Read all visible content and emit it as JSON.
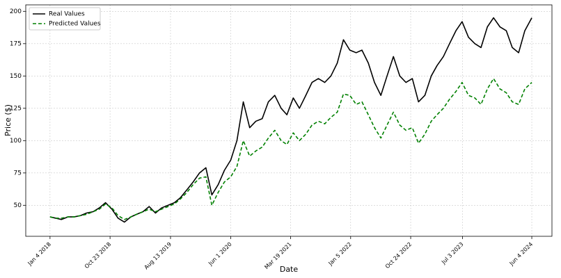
{
  "chart_data": {
    "type": "line",
    "xlabel": "Date",
    "ylabel": "Price ($)",
    "x": [
      "2018-01-04",
      "2018-02-01",
      "2018-03-01",
      "2018-04-01",
      "2018-05-01",
      "2018-06-01",
      "2018-07-01",
      "2018-08-01",
      "2018-09-01",
      "2018-10-01",
      "2018-11-01",
      "2018-12-01",
      "2019-01-01",
      "2019-02-01",
      "2019-03-01",
      "2019-04-01",
      "2019-05-01",
      "2019-06-01",
      "2019-07-01",
      "2019-08-01",
      "2019-09-01",
      "2019-10-01",
      "2019-11-01",
      "2019-12-01",
      "2020-01-01",
      "2020-02-01",
      "2020-03-01",
      "2020-04-01",
      "2020-05-01",
      "2020-06-01",
      "2020-07-01",
      "2020-08-01",
      "2020-09-01",
      "2020-10-01",
      "2020-11-01",
      "2020-12-01",
      "2021-01-01",
      "2021-02-01",
      "2021-03-01",
      "2021-04-01",
      "2021-05-01",
      "2021-06-01",
      "2021-07-01",
      "2021-08-01",
      "2021-09-01",
      "2021-10-01",
      "2021-11-01",
      "2021-12-01",
      "2022-01-01",
      "2022-02-01",
      "2022-03-01",
      "2022-04-01",
      "2022-05-01",
      "2022-06-01",
      "2022-07-01",
      "2022-08-01",
      "2022-09-01",
      "2022-10-01",
      "2022-11-01",
      "2022-12-01",
      "2023-01-01",
      "2023-02-01",
      "2023-03-01",
      "2023-04-01",
      "2023-05-01",
      "2023-06-01",
      "2023-07-01",
      "2023-08-01",
      "2023-09-01",
      "2023-10-01",
      "2023-11-01",
      "2023-12-01",
      "2024-01-01",
      "2024-02-01",
      "2024-03-01",
      "2024-04-01",
      "2024-05-01",
      "2024-06-04"
    ],
    "series": [
      {
        "name": "Real Values",
        "color": "#000000",
        "linestyle": "solid",
        "values": [
          41,
          40,
          39,
          41,
          41,
          42,
          44,
          45,
          48,
          52,
          47,
          40,
          37,
          41,
          43,
          45,
          49,
          44,
          48,
          50,
          52,
          56,
          62,
          68,
          75,
          79,
          58,
          66,
          77,
          85,
          100,
          130,
          110,
          115,
          117,
          130,
          135,
          125,
          120,
          133,
          125,
          135,
          145,
          148,
          145,
          150,
          160,
          178,
          170,
          168,
          170,
          160,
          145,
          135,
          150,
          165,
          150,
          145,
          148,
          130,
          135,
          150,
          158,
          165,
          175,
          185,
          192,
          180,
          175,
          172,
          188,
          195,
          188,
          185,
          172,
          168,
          185,
          195
        ]
      },
      {
        "name": "Predicted Values",
        "color": "#008000",
        "linestyle": "dashed",
        "values": [
          41,
          40,
          40,
          41,
          41,
          42,
          43,
          45,
          47,
          51,
          48,
          42,
          39,
          41,
          43,
          45,
          47,
          45,
          47,
          49,
          51,
          55,
          60,
          66,
          71,
          72,
          50,
          60,
          68,
          72,
          80,
          100,
          88,
          92,
          95,
          102,
          108,
          100,
          97,
          106,
          100,
          105,
          112,
          115,
          113,
          118,
          122,
          136,
          135,
          128,
          130,
          120,
          110,
          102,
          112,
          122,
          112,
          108,
          110,
          98,
          105,
          115,
          120,
          125,
          132,
          138,
          145,
          135,
          133,
          128,
          140,
          148,
          140,
          137,
          130,
          128,
          140,
          145
        ]
      }
    ],
    "xlim": [
      "2017-09-08",
      "2024-09-10"
    ],
    "xticks": [
      {
        "value": "2018-01-04",
        "label": "Jan 4 2018"
      },
      {
        "value": "2018-10-23",
        "label": "Oct 23 2018"
      },
      {
        "value": "2019-08-13",
        "label": "Aug 13 2019"
      },
      {
        "value": "2020-06-01",
        "label": "Jun 1 2020"
      },
      {
        "value": "2021-03-19",
        "label": "Mar 19 2021"
      },
      {
        "value": "2022-01-05",
        "label": "Jan 5 2022"
      },
      {
        "value": "2022-10-24",
        "label": "Oct 24 2022"
      },
      {
        "value": "2023-07-03",
        "label": "Jul 3 2023"
      },
      {
        "value": "2024-06-04",
        "label": "Jun 4 2024"
      }
    ],
    "ylim": [
      26,
      205
    ],
    "yticks": [
      50,
      75,
      100,
      125,
      150,
      175,
      200
    ],
    "grid": true,
    "legend": "upper left"
  }
}
